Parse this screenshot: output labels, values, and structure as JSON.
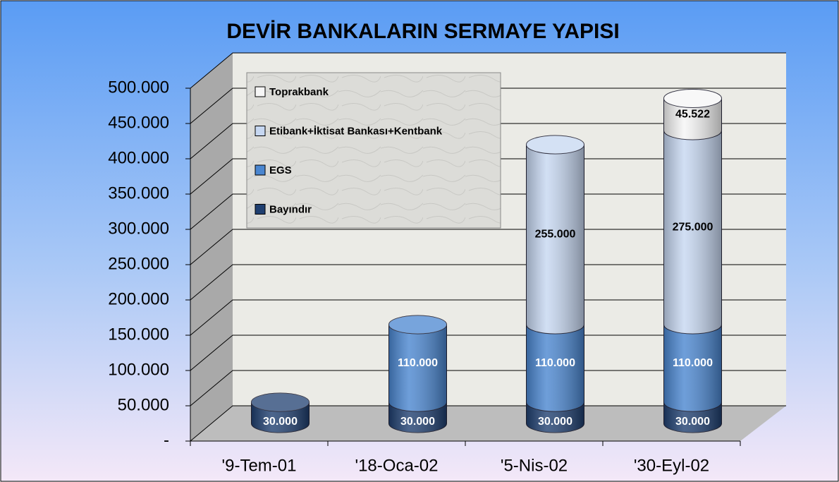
{
  "chart_data": {
    "type": "bar3d-cylinder-stacked",
    "title": "DEVİR BANKALARIN SERMAYE YAPISI",
    "categories": [
      "'9-Tem-01",
      "'18-Oca-02",
      "'5-Nis-02",
      "'30-Eyl-02"
    ],
    "series": [
      {
        "name": "Bayındır",
        "color": "#1f3f70",
        "values": [
          30000,
          30000,
          30000,
          30000
        ],
        "value_labels": [
          "30.000",
          "30.000",
          "30.000",
          "30.000"
        ]
      },
      {
        "name": "EGS",
        "color": "#4a86d0",
        "values": [
          null,
          110000,
          110000,
          110000
        ],
        "value_labels": [
          null,
          "110.000",
          "110.000",
          "110.000"
        ]
      },
      {
        "name": "Etibank+İktisat Bankası+Kentbank",
        "color": "#c6d7f1",
        "values": [
          null,
          null,
          255000,
          275000
        ],
        "value_labels": [
          null,
          null,
          "255.000",
          "275.000"
        ]
      },
      {
        "name": "Toprakbank",
        "color": "#f6f6f6",
        "values": [
          null,
          null,
          null,
          45522
        ],
        "value_labels": [
          null,
          null,
          null,
          "45.522"
        ]
      }
    ],
    "ylim": [
      0,
      500000
    ],
    "yticks": [
      {
        "value": 0,
        "label": "-"
      },
      {
        "value": 50000,
        "label": "50.000"
      },
      {
        "value": 100000,
        "label": "100.000"
      },
      {
        "value": 150000,
        "label": "150.000"
      },
      {
        "value": 200000,
        "label": "200.000"
      },
      {
        "value": 250000,
        "label": "250.000"
      },
      {
        "value": 300000,
        "label": "300.000"
      },
      {
        "value": 350000,
        "label": "350.000"
      },
      {
        "value": 400000,
        "label": "400.000"
      },
      {
        "value": 450000,
        "label": "450.000"
      },
      {
        "value": 500000,
        "label": "500.000"
      }
    ],
    "grid": true,
    "legend": "upper left"
  }
}
